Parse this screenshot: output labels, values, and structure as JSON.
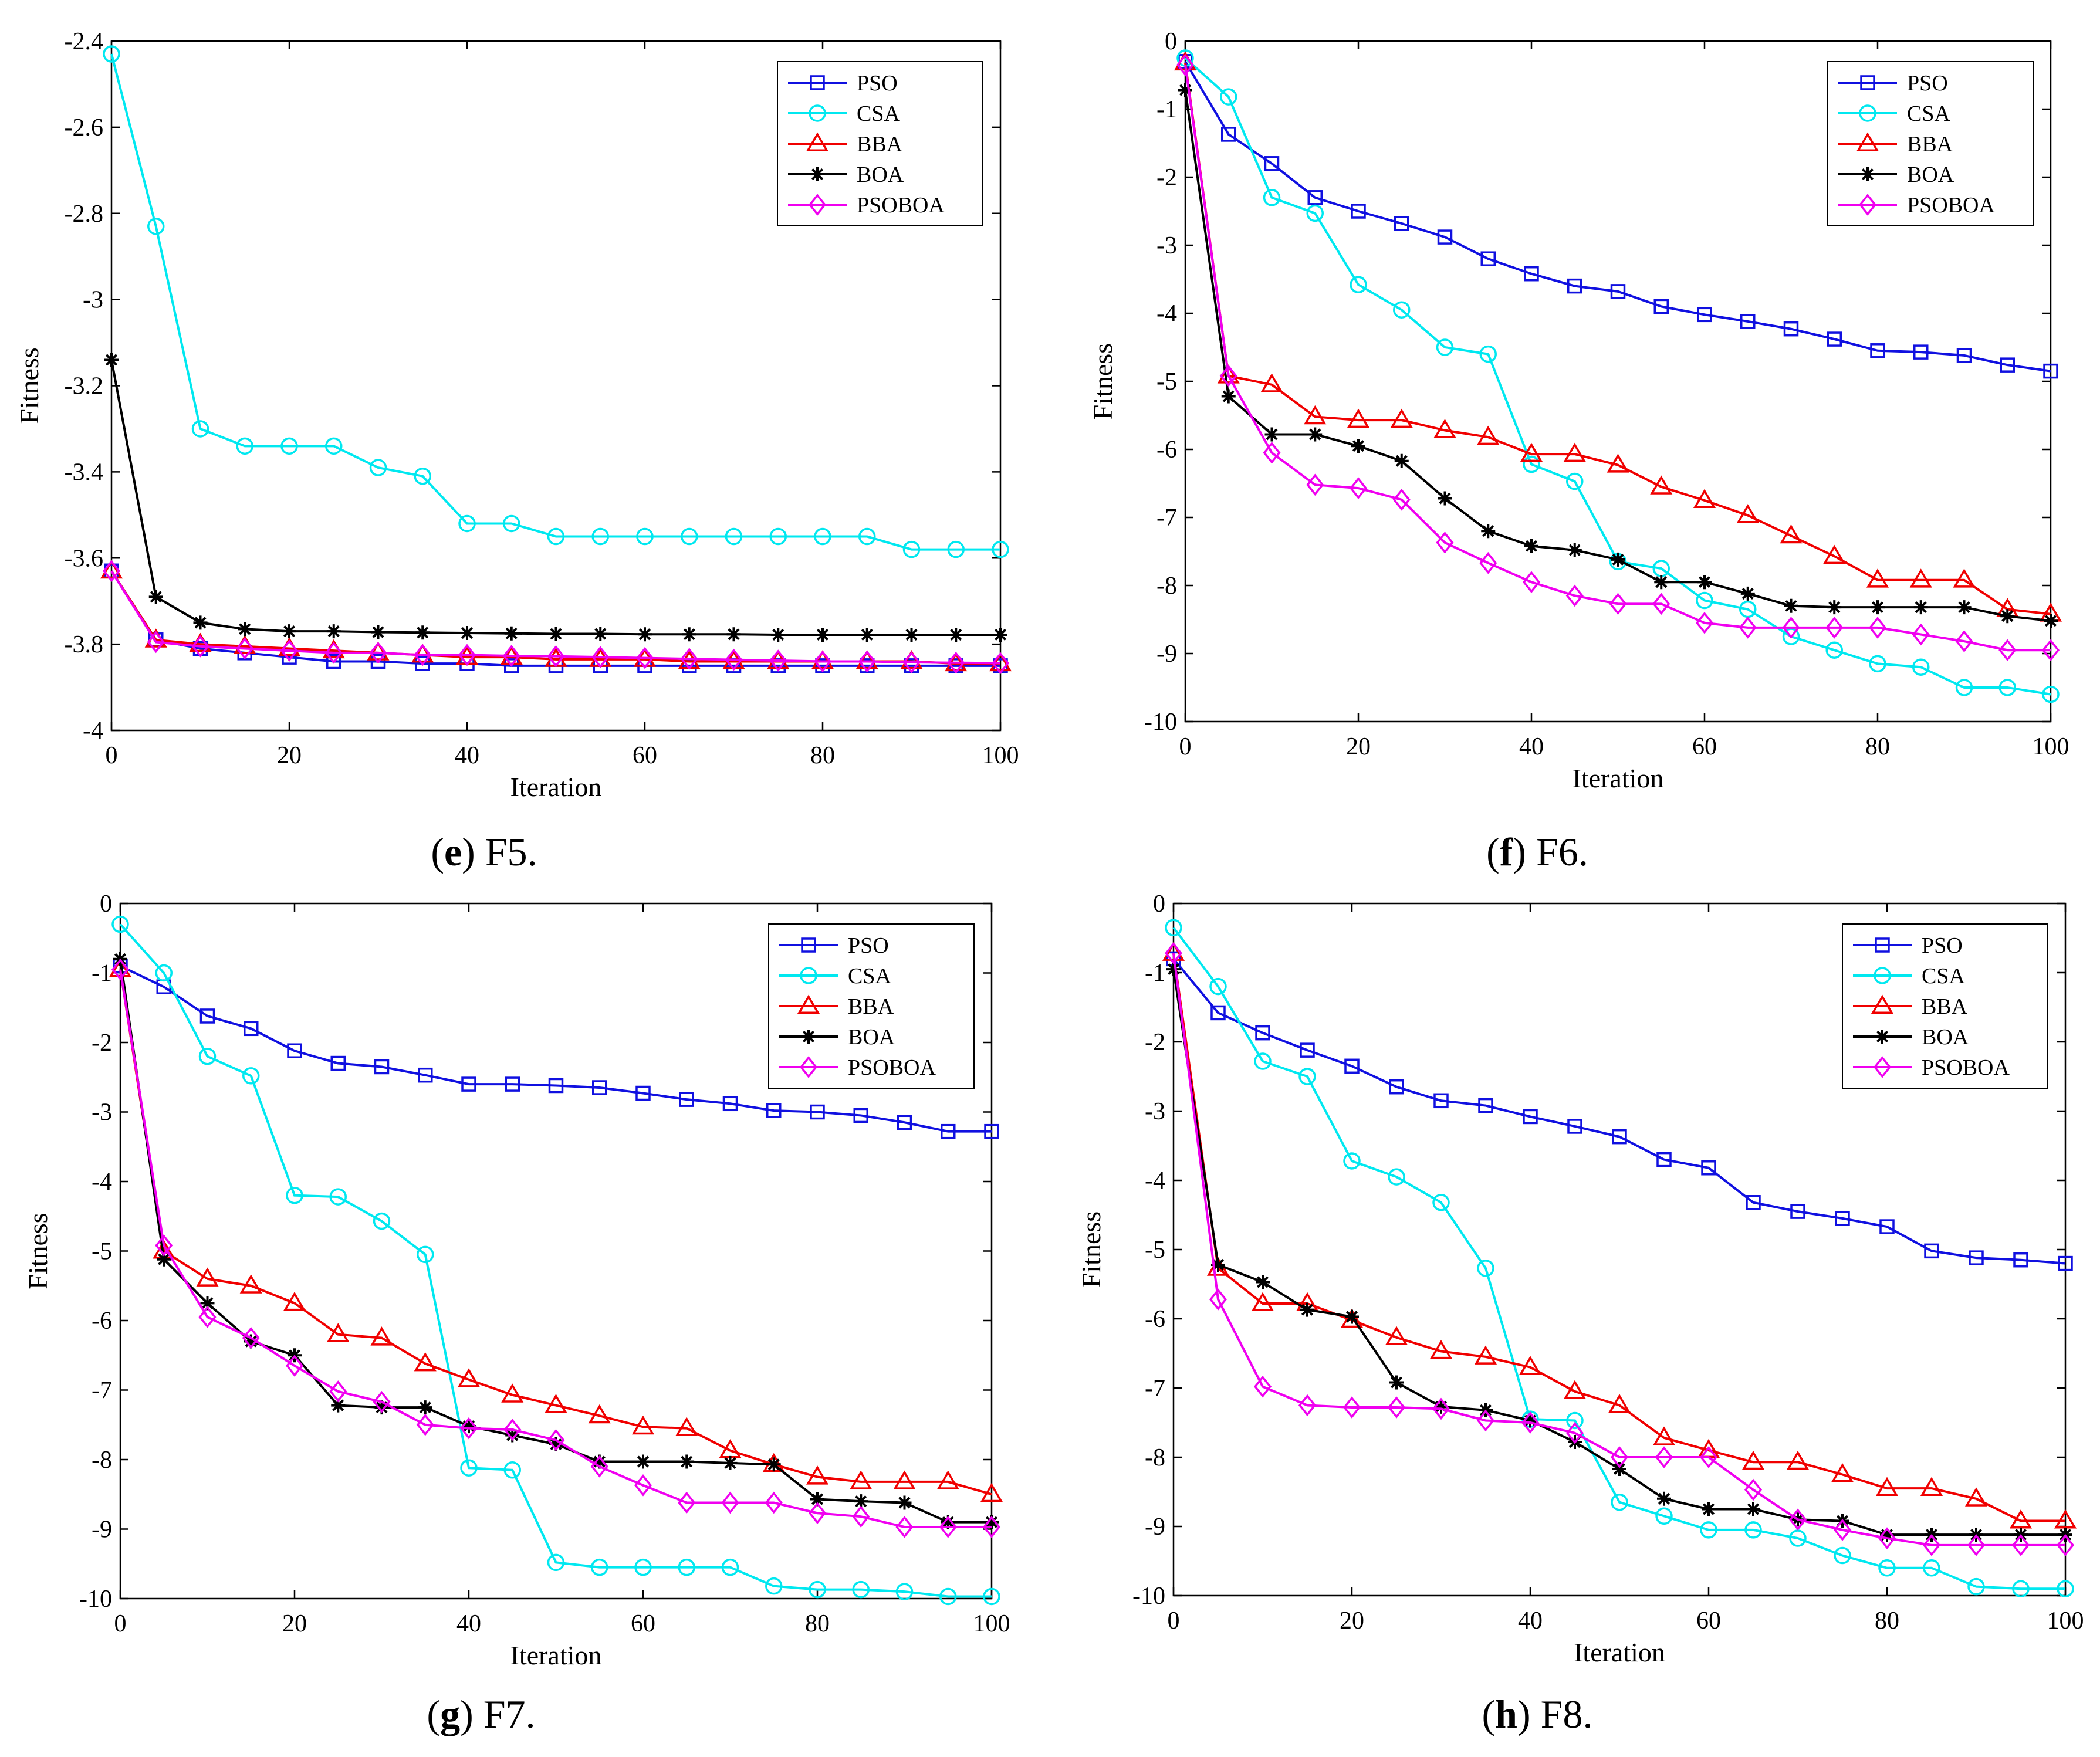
{
  "figure": {
    "panels_count": 4
  },
  "colors": {
    "PSO": "#1010e0",
    "CSA": "#00e8f0",
    "BBA": "#f00000",
    "BOA": "#000000",
    "PSOBOA": "#f000f0"
  },
  "chart_data": [
    {
      "type": "line",
      "caption_letter": "e",
      "caption_text": " F5.",
      "xlabel": "Iteration",
      "ylabel": "Fitness",
      "xlim": [
        0,
        100
      ],
      "ylim": [
        -4,
        -2.4
      ],
      "xticks": [
        0,
        20,
        40,
        60,
        80,
        100
      ],
      "yticks": [
        -4,
        -3.8,
        -3.6,
        -3.4,
        -3.2,
        -3,
        -2.8,
        -2.6,
        -2.4
      ],
      "ytick_labels": [
        "-4",
        "-3.8",
        "-3.6",
        "-3.4",
        "-3.2",
        "-3",
        "-2.8",
        "-2.6",
        "-2.4"
      ],
      "legend_position": "top-right",
      "x": [
        0,
        5,
        10,
        15,
        20,
        25,
        30,
        35,
        40,
        45,
        50,
        55,
        60,
        65,
        70,
        75,
        80,
        85,
        90,
        95,
        100
      ],
      "series": [
        {
          "name": "PSO",
          "marker": "square",
          "values": [
            -3.63,
            -3.79,
            -3.81,
            -3.82,
            -3.83,
            -3.84,
            -3.84,
            -3.845,
            -3.845,
            -3.85,
            -3.85,
            -3.85,
            -3.85,
            -3.85,
            -3.85,
            -3.85,
            -3.85,
            -3.85,
            -3.85,
            -3.85,
            -3.85
          ]
        },
        {
          "name": "CSA",
          "marker": "circle",
          "values": [
            -2.43,
            -2.83,
            -3.3,
            -3.34,
            -3.34,
            -3.34,
            -3.39,
            -3.41,
            -3.52,
            -3.52,
            -3.55,
            -3.55,
            -3.55,
            -3.55,
            -3.55,
            -3.55,
            -3.55,
            -3.55,
            -3.58,
            -3.58,
            -3.58
          ]
        },
        {
          "name": "BBA",
          "marker": "triangle",
          "values": [
            -3.63,
            -3.79,
            -3.8,
            -3.805,
            -3.81,
            -3.815,
            -3.82,
            -3.825,
            -3.83,
            -3.83,
            -3.835,
            -3.835,
            -3.835,
            -3.84,
            -3.84,
            -3.84,
            -3.84,
            -3.84,
            -3.84,
            -3.845,
            -3.845
          ]
        },
        {
          "name": "BOA",
          "marker": "star",
          "values": [
            -3.14,
            -3.69,
            -3.75,
            -3.765,
            -3.77,
            -3.77,
            -3.772,
            -3.773,
            -3.774,
            -3.775,
            -3.776,
            -3.776,
            -3.777,
            -3.777,
            -3.777,
            -3.778,
            -3.778,
            -3.778,
            -3.778,
            -3.778,
            -3.778
          ]
        },
        {
          "name": "PSOBOA",
          "marker": "diamond",
          "values": [
            -3.63,
            -3.795,
            -3.805,
            -3.81,
            -3.815,
            -3.82,
            -3.82,
            -3.825,
            -3.825,
            -3.827,
            -3.828,
            -3.83,
            -3.832,
            -3.834,
            -3.836,
            -3.838,
            -3.84,
            -3.84,
            -3.842,
            -3.843,
            -3.844
          ]
        }
      ]
    },
    {
      "type": "line",
      "caption_letter": "f",
      "caption_text": " F6.",
      "xlabel": "Iteration",
      "ylabel": "Fitness",
      "xlim": [
        0,
        100
      ],
      "ylim": [
        -10,
        0
      ],
      "xticks": [
        0,
        20,
        40,
        60,
        80,
        100
      ],
      "yticks": [
        -10,
        -9,
        -8,
        -7,
        -6,
        -5,
        -4,
        -3,
        -2,
        -1,
        0
      ],
      "ytick_labels": [
        "-10",
        "-9",
        "-8",
        "-7",
        "-6",
        "-5",
        "-4",
        "-3",
        "-2",
        "-1",
        "0"
      ],
      "legend_position": "top-right",
      "x": [
        0,
        5,
        10,
        15,
        20,
        25,
        30,
        35,
        40,
        45,
        50,
        55,
        60,
        65,
        70,
        75,
        80,
        85,
        90,
        95,
        100
      ],
      "series": [
        {
          "name": "PSO",
          "marker": "square",
          "values": [
            -0.3,
            -1.37,
            -1.8,
            -2.3,
            -2.5,
            -2.68,
            -2.88,
            -3.2,
            -3.42,
            -3.6,
            -3.68,
            -3.9,
            -4.02,
            -4.12,
            -4.23,
            -4.38,
            -4.55,
            -4.57,
            -4.62,
            -4.76,
            -4.85
          ]
        },
        {
          "name": "CSA",
          "marker": "circle",
          "values": [
            -0.25,
            -0.82,
            -2.3,
            -2.53,
            -3.58,
            -3.95,
            -4.5,
            -4.6,
            -6.22,
            -6.47,
            -7.65,
            -7.75,
            -8.22,
            -8.35,
            -8.75,
            -8.95,
            -9.15,
            -9.2,
            -9.5,
            -9.5,
            -9.6
          ]
        },
        {
          "name": "BBA",
          "marker": "triangle",
          "values": [
            -0.32,
            -4.92,
            -5.05,
            -5.52,
            -5.57,
            -5.57,
            -5.72,
            -5.82,
            -6.07,
            -6.07,
            -6.23,
            -6.55,
            -6.75,
            -6.97,
            -7.27,
            -7.57,
            -7.92,
            -7.92,
            -7.92,
            -8.35,
            -8.42
          ]
        },
        {
          "name": "BOA",
          "marker": "star",
          "values": [
            -0.72,
            -5.22,
            -5.78,
            -5.78,
            -5.95,
            -6.17,
            -6.72,
            -7.2,
            -7.42,
            -7.48,
            -7.62,
            -7.95,
            -7.95,
            -8.12,
            -8.3,
            -8.32,
            -8.32,
            -8.32,
            -8.32,
            -8.45,
            -8.52
          ]
        },
        {
          "name": "PSOBOA",
          "marker": "diamond",
          "values": [
            -0.35,
            -4.92,
            -6.05,
            -6.52,
            -6.57,
            -6.74,
            -7.37,
            -7.67,
            -7.95,
            -8.15,
            -8.27,
            -8.27,
            -8.55,
            -8.62,
            -8.62,
            -8.62,
            -8.62,
            -8.72,
            -8.82,
            -8.95,
            -8.95
          ]
        }
      ]
    },
    {
      "type": "line",
      "caption_letter": "g",
      "caption_text": " F7.",
      "xlabel": "Iteration",
      "ylabel": "Fitness",
      "xlim": [
        0,
        100
      ],
      "ylim": [
        -10,
        0
      ],
      "xticks": [
        0,
        20,
        40,
        60,
        80,
        100
      ],
      "yticks": [
        -10,
        -9,
        -8,
        -7,
        -6,
        -5,
        -4,
        -3,
        -2,
        -1,
        0
      ],
      "ytick_labels": [
        "-10",
        "-9",
        "-8",
        "-7",
        "-6",
        "-5",
        "-4",
        "-3",
        "-2",
        "-1",
        "0"
      ],
      "legend_position": "top-right",
      "x": [
        0,
        5,
        10,
        15,
        20,
        25,
        30,
        35,
        40,
        45,
        50,
        55,
        60,
        65,
        70,
        75,
        80,
        85,
        90,
        95,
        100
      ],
      "series": [
        {
          "name": "PSO",
          "marker": "square",
          "values": [
            -0.9,
            -1.2,
            -1.62,
            -1.8,
            -2.12,
            -2.3,
            -2.35,
            -2.47,
            -2.6,
            -2.6,
            -2.62,
            -2.65,
            -2.73,
            -2.82,
            -2.88,
            -2.98,
            -3.0,
            -3.05,
            -3.15,
            -3.28,
            -3.28
          ]
        },
        {
          "name": "CSA",
          "marker": "circle",
          "values": [
            -0.3,
            -1.0,
            -2.2,
            -2.48,
            -4.2,
            -4.22,
            -4.57,
            -5.05,
            -8.12,
            -8.15,
            -9.48,
            -9.55,
            -9.55,
            -9.55,
            -9.55,
            -9.82,
            -9.87,
            -9.87,
            -9.9,
            -9.97,
            -9.97
          ]
        },
        {
          "name": "BBA",
          "marker": "triangle",
          "values": [
            -0.95,
            -5.0,
            -5.4,
            -5.5,
            -5.75,
            -6.2,
            -6.25,
            -6.62,
            -6.85,
            -7.07,
            -7.22,
            -7.37,
            -7.53,
            -7.55,
            -7.87,
            -8.07,
            -8.25,
            -8.32,
            -8.32,
            -8.32,
            -8.5
          ]
        },
        {
          "name": "BOA",
          "marker": "star",
          "values": [
            -0.8,
            -5.12,
            -5.75,
            -6.3,
            -6.5,
            -7.22,
            -7.25,
            -7.25,
            -7.52,
            -7.65,
            -7.78,
            -8.03,
            -8.03,
            -8.03,
            -8.05,
            -8.07,
            -8.57,
            -8.6,
            -8.62,
            -8.9,
            -8.9
          ]
        },
        {
          "name": "PSOBOA",
          "marker": "diamond",
          "values": [
            -0.95,
            -4.92,
            -5.95,
            -6.25,
            -6.65,
            -7.02,
            -7.17,
            -7.5,
            -7.55,
            -7.57,
            -7.72,
            -8.1,
            -8.37,
            -8.62,
            -8.62,
            -8.62,
            -8.77,
            -8.82,
            -8.97,
            -8.97,
            -8.97
          ]
        }
      ]
    },
    {
      "type": "line",
      "caption_letter": "h",
      "caption_text": " F8.",
      "xlabel": "Iteration",
      "ylabel": "Fitness",
      "xlim": [
        0,
        100
      ],
      "ylim": [
        -10,
        0
      ],
      "xticks": [
        0,
        20,
        40,
        60,
        80,
        100
      ],
      "yticks": [
        -10,
        -9,
        -8,
        -7,
        -6,
        -5,
        -4,
        -3,
        -2,
        -1,
        0
      ],
      "ytick_labels": [
        "-10",
        "-9",
        "-8",
        "-7",
        "-6",
        "-5",
        "-4",
        "-3",
        "-2",
        "-1",
        "0"
      ],
      "legend_position": "top-right",
      "x": [
        0,
        5,
        10,
        15,
        20,
        25,
        30,
        35,
        40,
        45,
        50,
        55,
        60,
        65,
        70,
        75,
        80,
        85,
        90,
        95,
        100
      ],
      "series": [
        {
          "name": "PSO",
          "marker": "square",
          "values": [
            -0.8,
            -1.58,
            -1.87,
            -2.12,
            -2.35,
            -2.65,
            -2.85,
            -2.92,
            -3.08,
            -3.22,
            -3.37,
            -3.7,
            -3.82,
            -4.32,
            -4.45,
            -4.55,
            -4.67,
            -5.02,
            -5.12,
            -5.15,
            -5.2
          ]
        },
        {
          "name": "CSA",
          "marker": "circle",
          "values": [
            -0.35,
            -1.2,
            -2.28,
            -2.5,
            -3.72,
            -3.95,
            -4.32,
            -5.27,
            -7.45,
            -7.47,
            -8.65,
            -8.85,
            -9.05,
            -9.05,
            -9.17,
            -9.42,
            -9.6,
            -9.6,
            -9.87,
            -9.9,
            -9.9
          ]
        },
        {
          "name": "BBA",
          "marker": "triangle",
          "values": [
            -0.72,
            -5.27,
            -5.78,
            -5.78,
            -6.02,
            -6.27,
            -6.47,
            -6.55,
            -6.7,
            -7.05,
            -7.25,
            -7.72,
            -7.9,
            -8.07,
            -8.07,
            -8.25,
            -8.45,
            -8.45,
            -8.6,
            -8.92,
            -8.92
          ]
        },
        {
          "name": "BOA",
          "marker": "star",
          "values": [
            -0.95,
            -5.22,
            -5.47,
            -5.87,
            -5.97,
            -6.92,
            -7.27,
            -7.32,
            -7.47,
            -7.78,
            -8.17,
            -8.6,
            -8.75,
            -8.75,
            -8.9,
            -8.92,
            -9.12,
            -9.12,
            -9.12,
            -9.12,
            -9.12
          ]
        },
        {
          "name": "PSOBOA",
          "marker": "diamond",
          "values": [
            -0.72,
            -5.72,
            -6.98,
            -7.25,
            -7.28,
            -7.28,
            -7.3,
            -7.47,
            -7.5,
            -7.65,
            -8.0,
            -8.0,
            -8.0,
            -8.47,
            -8.9,
            -9.05,
            -9.17,
            -9.27,
            -9.27,
            -9.27,
            -9.27
          ]
        }
      ]
    }
  ]
}
